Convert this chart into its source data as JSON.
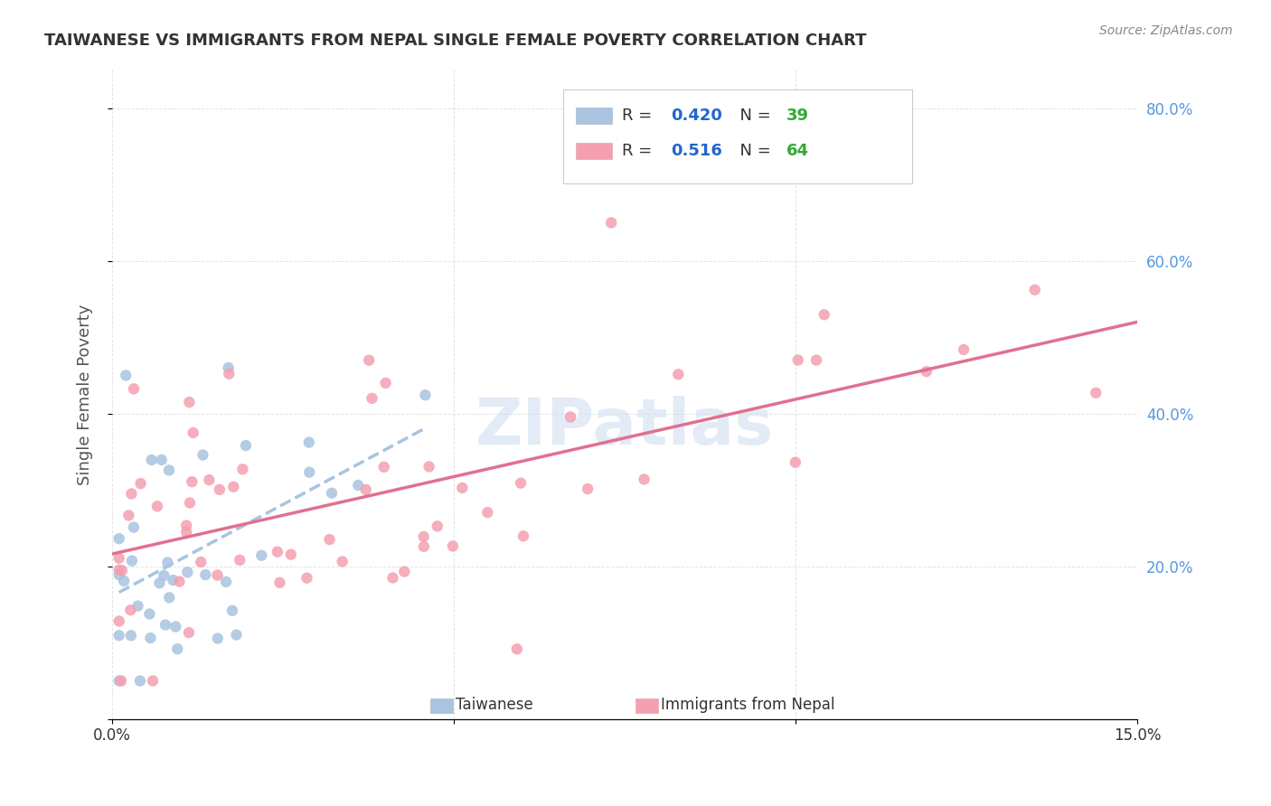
{
  "title": "TAIWANESE VS IMMIGRANTS FROM NEPAL SINGLE FEMALE POVERTY CORRELATION CHART",
  "source": "Source: ZipAtlas.com",
  "ylabel": "Single Female Poverty",
  "xlim": [
    0,
    0.15
  ],
  "ylim": [
    0,
    0.85
  ],
  "yticks_right": [
    0.2,
    0.4,
    0.6,
    0.8
  ],
  "ytick_labels_right": [
    "20.0%",
    "40.0%",
    "60.0%",
    "80.0%"
  ],
  "series1_label": "Taiwanese",
  "series1_R": "0.420",
  "series1_N": "39",
  "series1_color": "#a8c4e0",
  "series1_trendline_color": "#a8c4e0",
  "series2_label": "Immigrants from Nepal",
  "series2_R": "0.516",
  "series2_N": "64",
  "series2_color": "#f4a0b0",
  "series2_trendline_color": "#e07090",
  "watermark": "ZIPatlas",
  "background_color": "#ffffff",
  "grid_color": "#dddddd",
  "title_color": "#333333",
  "axis_label_color": "#555555",
  "right_tick_color": "#5599dd",
  "legend_R_color": "#2266cc",
  "legend_N_color": "#33aa33"
}
